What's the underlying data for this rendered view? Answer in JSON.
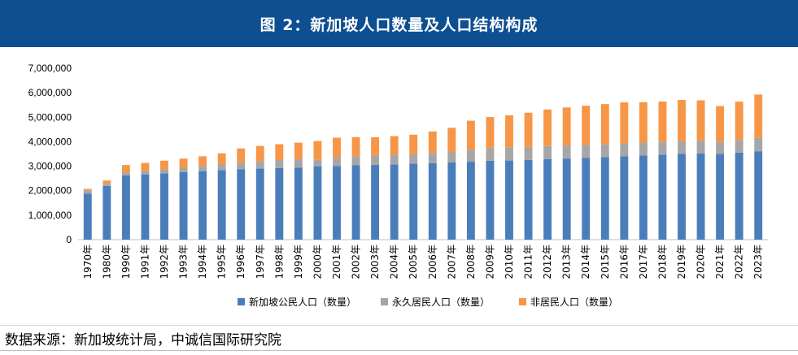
{
  "title": "图 2：新加坡人口数量及人口结构构成",
  "source": "数据来源：新加坡统计局，中诚信国际研究院",
  "colors": {
    "banner": "#0e4f91",
    "citizen": "#4a7ebb",
    "pr": "#a6a6a6",
    "nonresident": "#f79646"
  },
  "chart_data": {
    "type": "bar",
    "stacked": true,
    "title": "",
    "xlabel": "",
    "ylabel": "",
    "ylim": [
      0,
      7000000
    ],
    "yticks": [
      "0",
      "1,000,000",
      "2,000,000",
      "3,000,000",
      "4,000,000",
      "5,000,000",
      "6,000,000",
      "7,000,000"
    ],
    "ytick_values": [
      0,
      1000000,
      2000000,
      3000000,
      4000000,
      5000000,
      6000000,
      7000000
    ],
    "grid": false,
    "legend_position": "bottom",
    "categories": [
      "1970年",
      "1980年",
      "1990年",
      "1991年",
      "1992年",
      "1993年",
      "1994年",
      "1995年",
      "1996年",
      "1997年",
      "1998年",
      "1999年",
      "2000年",
      "2001年",
      "2002年",
      "2003年",
      "2004年",
      "2005年",
      "2006年",
      "2007年",
      "2008年",
      "2009年",
      "2010年",
      "2011年",
      "2012年",
      "2013年",
      "2014年",
      "2015年",
      "2016年",
      "2017年",
      "2018年",
      "2019年",
      "2020年",
      "2021年",
      "2022年",
      "2023年"
    ],
    "series": [
      {
        "name": "新加坡公民人口（数量）",
        "color_key": "citizen",
        "values": [
          1874800,
          2194300,
          2623700,
          2666300,
          2709000,
          2752900,
          2798700,
          2839300,
          2871100,
          2900300,
          2926600,
          2946500,
          2985900,
          3012400,
          3036000,
          3055200,
          3075100,
          3101300,
          3126000,
          3153200,
          3182900,
          3219700,
          3230700,
          3257200,
          3285100,
          3313500,
          3343000,
          3375000,
          3408900,
          3439200,
          3471900,
          3500900,
          3523200,
          3498200,
          3553700,
          3610700
        ]
      },
      {
        "name": "永久居民人口（数量）",
        "color_key": "pr",
        "values": [
          138800,
          87800,
          112100,
          133900,
          157900,
          182000,
          213600,
          249300,
          289300,
          306300,
          324800,
          346000,
          287500,
          351300,
          376900,
          374000,
          379900,
          386700,
          418000,
          449200,
          478200,
          533200,
          541000,
          532000,
          536100,
          531200,
          527700,
          527700,
          524600,
          526600,
          522300,
          525300,
          521500,
          488700,
          518700,
          544900
        ]
      },
      {
        "name": "非居民人口（数量）",
        "color_key": "nonresident",
        "values": [
          60900,
          131800,
          311300,
          333800,
          357700,
          375300,
          393200,
          436200,
          565400,
          619300,
          645800,
          665400,
          754500,
          797200,
          775800,
          753800,
          773100,
          797700,
          875500,
          966200,
          1196700,
          1253700,
          1305000,
          1394400,
          1494000,
          1554600,
          1599000,
          1632300,
          1673700,
          1648000,
          1644500,
          1677400,
          1644400,
          1467800,
          1564400,
          1770200
        ]
      }
    ]
  }
}
